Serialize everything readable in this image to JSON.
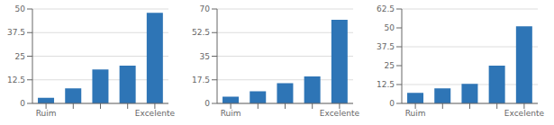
{
  "chart_data": [
    {
      "type": "bar",
      "categories": [
        "Ruim",
        null,
        null,
        null,
        "Excelente"
      ],
      "values": [
        3,
        8,
        18,
        20,
        48
      ],
      "color": "#2E75B6",
      "ylim": [
        0,
        50
      ],
      "yticks": [
        0,
        12.5,
        25,
        37.5,
        50
      ],
      "grid": true
    },
    {
      "type": "bar",
      "categories": [
        "Ruim",
        null,
        null,
        null,
        "Excelente"
      ],
      "values": [
        5,
        9,
        15,
        20,
        62
      ],
      "color": "#2E75B6",
      "ylim": [
        0,
        70
      ],
      "yticks": [
        0,
        17.5,
        35,
        52.5,
        70
      ],
      "grid": true
    },
    {
      "type": "bar",
      "categories": [
        "Ruim",
        null,
        null,
        null,
        "Excelente"
      ],
      "values": [
        7,
        10,
        13,
        25,
        51
      ],
      "color": "#2E75B6",
      "ylim": [
        0,
        62.5
      ],
      "yticks": [
        0,
        12.5,
        25,
        37.5,
        50,
        62.5
      ],
      "grid": true
    }
  ]
}
